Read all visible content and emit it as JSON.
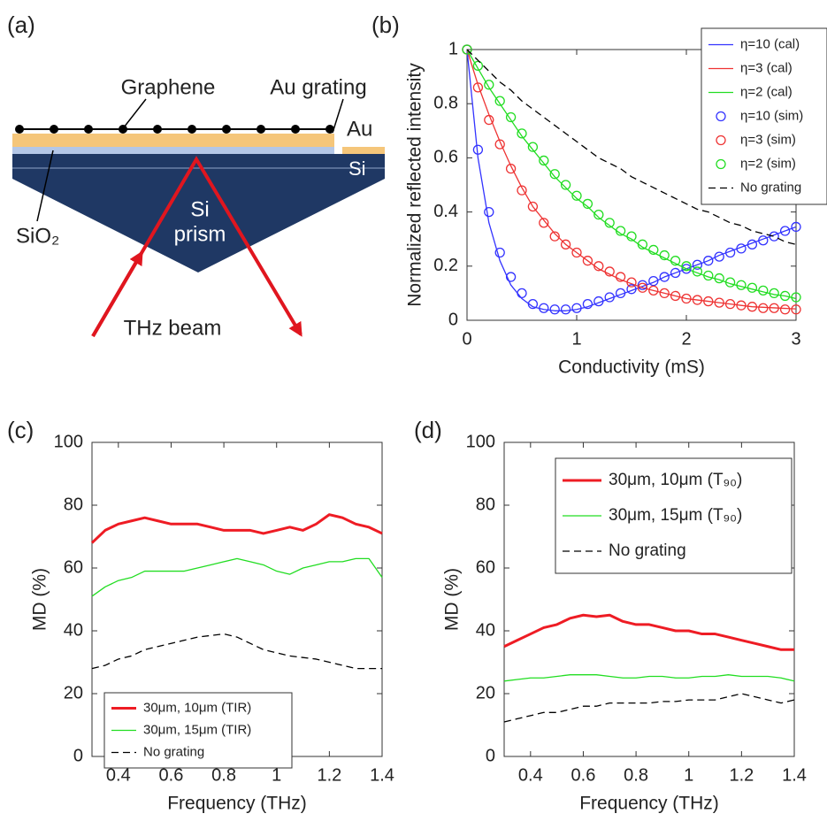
{
  "diagram": {
    "panel_label": "(a)",
    "labels": {
      "graphene": "Graphene",
      "au_grating": "Au grating",
      "au": "Au",
      "si": "Si",
      "sio2": "SiO₂",
      "si_prism": [
        "Si",
        "prism"
      ],
      "thz_beam": "THz beam"
    }
  },
  "chart_data": [
    {
      "type": "line",
      "panel_label": "(b)",
      "x_label": "Conductivity (mS)",
      "y_label": "Normalized reflected intensity",
      "x": [
        0,
        0.1,
        0.2,
        0.3,
        0.4,
        0.5,
        0.6,
        0.7,
        0.8,
        0.9,
        1,
        1.1,
        1.2,
        1.3,
        1.4,
        1.5,
        1.6,
        1.7,
        1.8,
        1.9,
        2,
        2.1,
        2.2,
        2.3,
        2.4,
        2.5,
        2.6,
        2.7,
        2.8,
        2.9,
        3
      ],
      "xlim": [
        0,
        3
      ],
      "xticks": [
        0,
        1,
        2,
        3
      ],
      "ylim": [
        0,
        1
      ],
      "yticks": [
        0,
        0.2,
        0.4,
        0.6,
        0.8,
        1
      ],
      "legend": "upper right",
      "series": [
        {
          "name": "η=10 (cal)",
          "color": "#3333ff",
          "values": [
            1,
            0.6,
            0.36,
            0.22,
            0.13,
            0.08,
            0.05,
            0.04,
            0.035,
            0.035,
            0.04,
            0.05,
            0.065,
            0.08,
            0.095,
            0.11,
            0.125,
            0.14,
            0.16,
            0.175,
            0.19,
            0.205,
            0.22,
            0.24,
            0.255,
            0.27,
            0.285,
            0.3,
            0.315,
            0.33,
            0.345
          ]
        },
        {
          "name": "η=3 (cal)",
          "color": "#ee3333",
          "values": [
            1,
            0.87,
            0.76,
            0.66,
            0.57,
            0.49,
            0.42,
            0.37,
            0.32,
            0.28,
            0.25,
            0.22,
            0.19,
            0.17,
            0.15,
            0.135,
            0.12,
            0.11,
            0.1,
            0.09,
            0.08,
            0.075,
            0.07,
            0.065,
            0.06,
            0.055,
            0.05,
            0.048,
            0.046,
            0.044,
            0.042
          ]
        },
        {
          "name": "η=2 (cal)",
          "color": "#22dd22",
          "values": [
            1,
            0.93,
            0.86,
            0.8,
            0.74,
            0.68,
            0.63,
            0.58,
            0.53,
            0.49,
            0.45,
            0.42,
            0.38,
            0.35,
            0.32,
            0.3,
            0.27,
            0.25,
            0.23,
            0.21,
            0.19,
            0.175,
            0.16,
            0.15,
            0.135,
            0.125,
            0.115,
            0.105,
            0.095,
            0.09,
            0.08
          ]
        },
        {
          "name": "η=10 (sim)",
          "color": "#3333ff",
          "marker": "circle",
          "values": [
            1,
            0.63,
            0.4,
            0.25,
            0.16,
            0.1,
            0.06,
            0.045,
            0.04,
            0.04,
            0.045,
            0.06,
            0.07,
            0.085,
            0.1,
            0.115,
            0.13,
            0.145,
            0.16,
            0.175,
            0.19,
            0.205,
            0.22,
            0.235,
            0.25,
            0.265,
            0.28,
            0.295,
            0.31,
            0.33,
            0.345
          ]
        },
        {
          "name": "η=3 (sim)",
          "color": "#ee3333",
          "marker": "circle",
          "values": [
            1,
            0.86,
            0.74,
            0.65,
            0.56,
            0.48,
            0.42,
            0.36,
            0.31,
            0.28,
            0.25,
            0.22,
            0.2,
            0.18,
            0.16,
            0.14,
            0.12,
            0.11,
            0.1,
            0.09,
            0.08,
            0.075,
            0.07,
            0.065,
            0.06,
            0.055,
            0.05,
            0.045,
            0.045,
            0.04,
            0.04
          ]
        },
        {
          "name": "η=2 (sim)",
          "color": "#22dd22",
          "marker": "circle",
          "values": [
            1,
            0.94,
            0.87,
            0.81,
            0.75,
            0.69,
            0.64,
            0.59,
            0.54,
            0.5,
            0.46,
            0.43,
            0.39,
            0.36,
            0.33,
            0.31,
            0.28,
            0.26,
            0.24,
            0.22,
            0.2,
            0.18,
            0.165,
            0.155,
            0.14,
            0.13,
            0.12,
            0.11,
            0.1,
            0.09,
            0.085
          ]
        },
        {
          "name": "No grating",
          "color": "#000000",
          "dash": true,
          "values": [
            1,
            0.96,
            0.92,
            0.88,
            0.85,
            0.81,
            0.78,
            0.75,
            0.72,
            0.69,
            0.66,
            0.63,
            0.6,
            0.58,
            0.56,
            0.53,
            0.51,
            0.49,
            0.47,
            0.45,
            0.43,
            0.41,
            0.4,
            0.38,
            0.36,
            0.35,
            0.33,
            0.32,
            0.31,
            0.29,
            0.28
          ]
        }
      ]
    },
    {
      "type": "line",
      "panel_label": "(c)",
      "x_label": "Frequency (THz)",
      "y_label": "MD (%)",
      "x": [
        0.3,
        0.35,
        0.4,
        0.45,
        0.5,
        0.55,
        0.6,
        0.65,
        0.7,
        0.75,
        0.8,
        0.85,
        0.9,
        0.95,
        1,
        1.05,
        1.1,
        1.15,
        1.2,
        1.25,
        1.3,
        1.35,
        1.4
      ],
      "xlim": [
        0.3,
        1.4
      ],
      "xticks": [
        0.4,
        0.6,
        0.8,
        1,
        1.2,
        1.4
      ],
      "ylim": [
        0,
        100
      ],
      "yticks": [
        0,
        20,
        40,
        60,
        80,
        100
      ],
      "legend": "lower left",
      "series": [
        {
          "name": "30μm, 10μm (TIR)",
          "color": "#ee1c24",
          "width": 3,
          "values": [
            68,
            72,
            74,
            75,
            76,
            75,
            74,
            74,
            74,
            73,
            72,
            72,
            72,
            71,
            72,
            73,
            72,
            74,
            77,
            76,
            74,
            73,
            71
          ]
        },
        {
          "name": "30μm, 15μm (TIR)",
          "color": "#22dd22",
          "values": [
            51,
            54,
            56,
            57,
            59,
            59,
            59,
            59,
            60,
            61,
            62,
            63,
            62,
            61,
            59,
            58,
            60,
            61,
            62,
            62,
            63,
            63,
            57
          ]
        },
        {
          "name": "No grating",
          "color": "#000000",
          "dash": true,
          "values": [
            28,
            29,
            31,
            32,
            34,
            35,
            36,
            37,
            38,
            38.5,
            39,
            38,
            36,
            34,
            33,
            32,
            31.5,
            31,
            30,
            29,
            28,
            28,
            28
          ]
        }
      ]
    },
    {
      "type": "line",
      "panel_label": "(d)",
      "x_label": "Frequency (THz)",
      "y_label": "MD (%)",
      "x": [
        0.3,
        0.35,
        0.4,
        0.45,
        0.5,
        0.55,
        0.6,
        0.65,
        0.7,
        0.75,
        0.8,
        0.85,
        0.9,
        0.95,
        1,
        1.05,
        1.1,
        1.15,
        1.2,
        1.25,
        1.3,
        1.35,
        1.4
      ],
      "xlim": [
        0.3,
        1.4
      ],
      "xticks": [
        0.4,
        0.6,
        0.8,
        1,
        1.2,
        1.4
      ],
      "ylim": [
        0,
        100
      ],
      "yticks": [
        0,
        20,
        40,
        60,
        80,
        100
      ],
      "legend": "upper left",
      "series": [
        {
          "name": "30μm, 10μm (T₉₀)",
          "color": "#ee1c24",
          "width": 3,
          "values": [
            35,
            37,
            39,
            41,
            42,
            44,
            45,
            44.5,
            45,
            43,
            42,
            42,
            41,
            40,
            40,
            39,
            39,
            38,
            37,
            36,
            35,
            34,
            34
          ]
        },
        {
          "name": "30μm, 15μm (T₉₀)",
          "color": "#22dd22",
          "values": [
            24,
            24.5,
            25,
            25,
            25.5,
            26,
            26,
            26,
            25.5,
            25,
            25,
            25.5,
            25.5,
            25,
            25,
            25.5,
            25.5,
            26,
            25.5,
            25.5,
            25.5,
            25,
            24
          ]
        },
        {
          "name": "No grating",
          "color": "#000000",
          "dash": true,
          "values": [
            11,
            12,
            13,
            14,
            14,
            15,
            16,
            16,
            17,
            17,
            17,
            17,
            17.5,
            17.5,
            18,
            18,
            18,
            19,
            20,
            19,
            18,
            17,
            18
          ]
        }
      ]
    }
  ]
}
